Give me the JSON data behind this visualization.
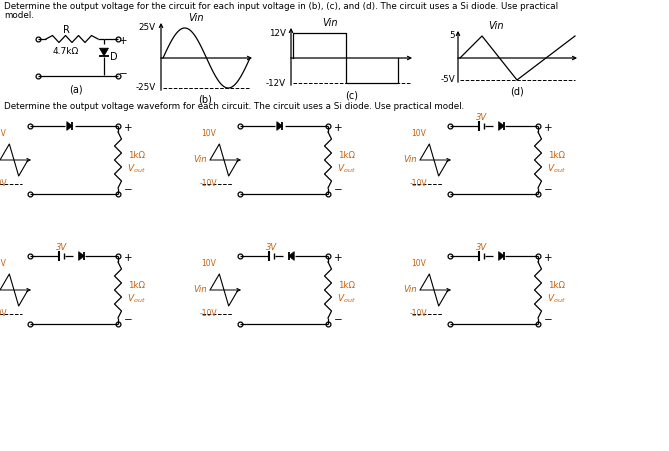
{
  "bg_color": "#ffffff",
  "text_color": "#000000",
  "orange_color": "#c8600a",
  "line_color": "#000000",
  "fig_width": 6.69,
  "fig_height": 4.51,
  "top_text1": "Determine the output voltage for the circuit for each input voltage in (b), (c), and (d). The circuit uses a Si diode. Use practical",
  "top_text2": "model.",
  "mid_text": "Determine the output voltage waveform for each circuit. The circuit uses a Si diode. Use practical model."
}
